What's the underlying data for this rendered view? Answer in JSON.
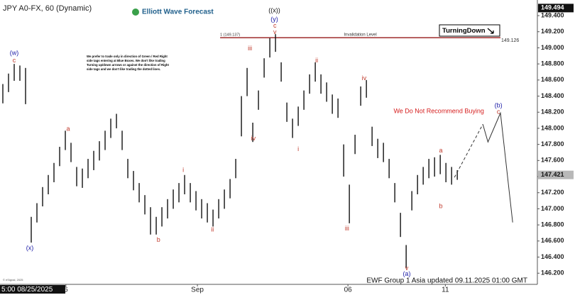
{
  "chart_data": {
    "type": "ohlc",
    "title": "JPY A0-FX, 60 (Dynamic)",
    "brand": "Elliott Wave Forecast",
    "footer": "EWF Group 1 Asia updated 09.11.2025 01:00 GMT",
    "cursor_date": "5:00 08/25/2025",
    "copyright": "© eSignal, 2025",
    "badge": "TurningDown",
    "note": [
      "We prefer to trade only in direction of Green / Red Right",
      "side tags entering at Blue Boxes. We don't like trading",
      "Turning up/down arrows or against the direction of Right",
      "side tags and we don't like trading the dotted lines."
    ],
    "color": "#111111",
    "x": [
      0,
      1,
      2,
      3,
      4,
      5,
      6,
      7,
      8,
      9,
      10,
      11,
      12,
      13,
      14,
      15,
      16,
      17,
      18,
      19,
      20,
      21,
      22,
      23,
      24,
      25,
      26,
      27,
      28,
      29,
      30,
      31,
      32,
      33,
      34,
      35,
      36,
      37,
      38,
      39,
      40,
      41,
      42,
      43,
      44,
      45,
      46,
      47,
      48,
      49,
      50,
      51,
      52,
      53,
      54,
      55,
      56,
      57,
      58,
      59,
      60,
      61,
      62,
      63,
      64,
      65,
      66,
      67,
      68,
      69,
      70,
      71,
      72,
      73,
      74,
      75,
      76,
      77,
      78,
      79,
      80
    ],
    "high": [
      148.55,
      148.68,
      148.8,
      148.78,
      148.75,
      146.9,
      147.07,
      147.27,
      147.42,
      147.57,
      147.77,
      147.97,
      147.82,
      147.52,
      147.5,
      147.62,
      147.72,
      147.84,
      147.97,
      148.12,
      148.18,
      147.97,
      147.62,
      147.47,
      147.32,
      147.17,
      147.02,
      146.9,
      147.02,
      147.12,
      147.24,
      147.32,
      147.42,
      147.32,
      147.22,
      147.12,
      147.07,
      146.99,
      147.12,
      147.24,
      147.37,
      147.62,
      148.4,
      148.75,
      148.07,
      148.47,
      148.87,
      149.12,
      149.17,
      148.82,
      148.32,
      148.12,
      148.27,
      148.47,
      148.67,
      148.82,
      148.67,
      148.57,
      148.42,
      148.37,
      147.8,
      147.3,
      147.92,
      148.52,
      148.6,
      148.02,
      147.87,
      147.82,
      147.62,
      147.32,
      146.95,
      146.55,
      147.22,
      147.42,
      147.52,
      147.62,
      147.64,
      147.67,
      147.57,
      147.52,
      147.48
    ],
    "low": [
      148.31,
      148.45,
      148.59,
      148.59,
      148.3,
      146.58,
      146.83,
      147.03,
      147.18,
      147.33,
      147.53,
      147.73,
      147.58,
      147.28,
      147.26,
      147.38,
      147.48,
      147.6,
      147.73,
      147.88,
      148.0,
      147.73,
      147.38,
      147.23,
      147.08,
      146.93,
      146.68,
      146.68,
      146.78,
      146.88,
      147.0,
      147.08,
      147.18,
      147.08,
      146.98,
      146.88,
      146.83,
      146.78,
      146.88,
      147.0,
      147.13,
      147.38,
      147.9,
      148.4,
      147.83,
      148.23,
      148.63,
      148.88,
      148.95,
      148.58,
      148.08,
      147.88,
      148.03,
      148.23,
      148.43,
      148.58,
      148.43,
      148.33,
      148.18,
      148.13,
      147.4,
      146.82,
      147.68,
      148.28,
      148.38,
      147.78,
      147.63,
      147.58,
      147.38,
      147.08,
      146.65,
      146.26,
      146.98,
      147.18,
      147.3,
      147.38,
      147.4,
      147.43,
      147.33,
      147.3,
      147.36
    ],
    "projection": {
      "x": [
        79.5,
        84.5,
        85.4,
        87.6,
        89.75
      ],
      "values": [
        147.39,
        148.05,
        147.83,
        148.19,
        146.83
      ],
      "color": "#333333"
    },
    "xlim": [
      -0.5,
      94.1
    ],
    "xticks": [
      {
        "value": 11.1,
        "label": "6"
      },
      {
        "value": 34.25,
        "label": "Sep"
      },
      {
        "value": 60.75,
        "label": "06"
      },
      {
        "value": 77.9,
        "label": "11"
      }
    ],
    "ylim": [
      146.07,
      149.55
    ],
    "yticks": [
      {
        "value": 146.2,
        "label": "146.200"
      },
      {
        "value": 146.4,
        "label": "146.400"
      },
      {
        "value": 146.6,
        "label": "146.600"
      },
      {
        "value": 146.8,
        "label": "146.800"
      },
      {
        "value": 147.0,
        "label": "147.000"
      },
      {
        "value": 147.2,
        "label": "147.200"
      },
      {
        "value": 147.4,
        "label": "147.400"
      },
      {
        "value": 147.6,
        "label": "147.600"
      },
      {
        "value": 147.8,
        "label": "147.800"
      },
      {
        "value": 148.0,
        "label": "148.000"
      },
      {
        "value": 148.2,
        "label": "148.200"
      },
      {
        "value": 148.4,
        "label": "148.400"
      },
      {
        "value": 148.6,
        "label": "148.600"
      },
      {
        "value": 148.8,
        "label": "148.800"
      },
      {
        "value": 149.0,
        "label": "149.000"
      },
      {
        "value": 149.2,
        "label": "149.200"
      },
      {
        "value": 149.4,
        "label": "149.400"
      }
    ],
    "high_price": 149.494,
    "current_price": 147.421,
    "invalidation": {
      "level": 149.126,
      "x_range": [
        38.25,
        87.6
      ],
      "ref_label": "1 (149.137)",
      "text": "Invalidation Level",
      "color": "#8b0000"
    },
    "annotations": [
      {
        "text": "(w)",
        "x": 2.0,
        "y": 148.93,
        "color": "#1a1aa6"
      },
      {
        "text": "c",
        "x": 2.0,
        "y": 148.84,
        "color": "#c0392b"
      },
      {
        "text": "(x)",
        "x": 4.75,
        "y": 146.51,
        "color": "#1a1aa6"
      },
      {
        "text": "a",
        "x": 11.5,
        "y": 147.99,
        "color": "#c0392b"
      },
      {
        "text": "b",
        "x": 27.4,
        "y": 146.61,
        "color": "#c0392b"
      },
      {
        "text": "i",
        "x": 31.75,
        "y": 147.48,
        "color": "#c0392b"
      },
      {
        "text": "ii",
        "x": 36.9,
        "y": 146.74,
        "color": "#c0392b"
      },
      {
        "text": "iii",
        "x": 43.5,
        "y": 148.99,
        "color": "#c0392b"
      },
      {
        "text": "iv",
        "x": 44.1,
        "y": 147.87,
        "color": "#c0392b"
      },
      {
        "text": "v",
        "x": 47.9,
        "y": 149.19,
        "color": "#c0392b"
      },
      {
        "text": "c",
        "x": 47.9,
        "y": 149.27,
        "color": "#c0392b"
      },
      {
        "text": "(y)",
        "x": 47.8,
        "y": 149.35,
        "color": "#1a1aa6"
      },
      {
        "text": "((x))",
        "x": 47.8,
        "y": 149.46,
        "color": "#111111"
      },
      {
        "text": "i",
        "x": 52.0,
        "y": 147.74,
        "color": "#c0392b"
      },
      {
        "text": "ii",
        "x": 55.25,
        "y": 148.84,
        "color": "#c0392b"
      },
      {
        "text": "iii",
        "x": 60.6,
        "y": 146.75,
        "color": "#c0392b"
      },
      {
        "text": "iv",
        "x": 63.6,
        "y": 148.62,
        "color": "#c0392b"
      },
      {
        "text": "v",
        "x": 71.1,
        "y": 146.26,
        "color": "#c0392b"
      },
      {
        "text": "(a)",
        "x": 71.1,
        "y": 146.19,
        "color": "#1a1aa6"
      },
      {
        "text": "a",
        "x": 77.1,
        "y": 147.72,
        "color": "#c0392b"
      },
      {
        "text": "b",
        "x": 77.1,
        "y": 147.03,
        "color": "#c0392b"
      },
      {
        "text": "(b)",
        "x": 87.25,
        "y": 148.28,
        "color": "#1a1aa6"
      },
      {
        "text": "c",
        "x": 87.25,
        "y": 148.2,
        "color": "#c0392b"
      },
      {
        "text": "We Do Not Recommend Buying",
        "x": 76.75,
        "y": 148.21,
        "color": "#d62020"
      }
    ]
  }
}
